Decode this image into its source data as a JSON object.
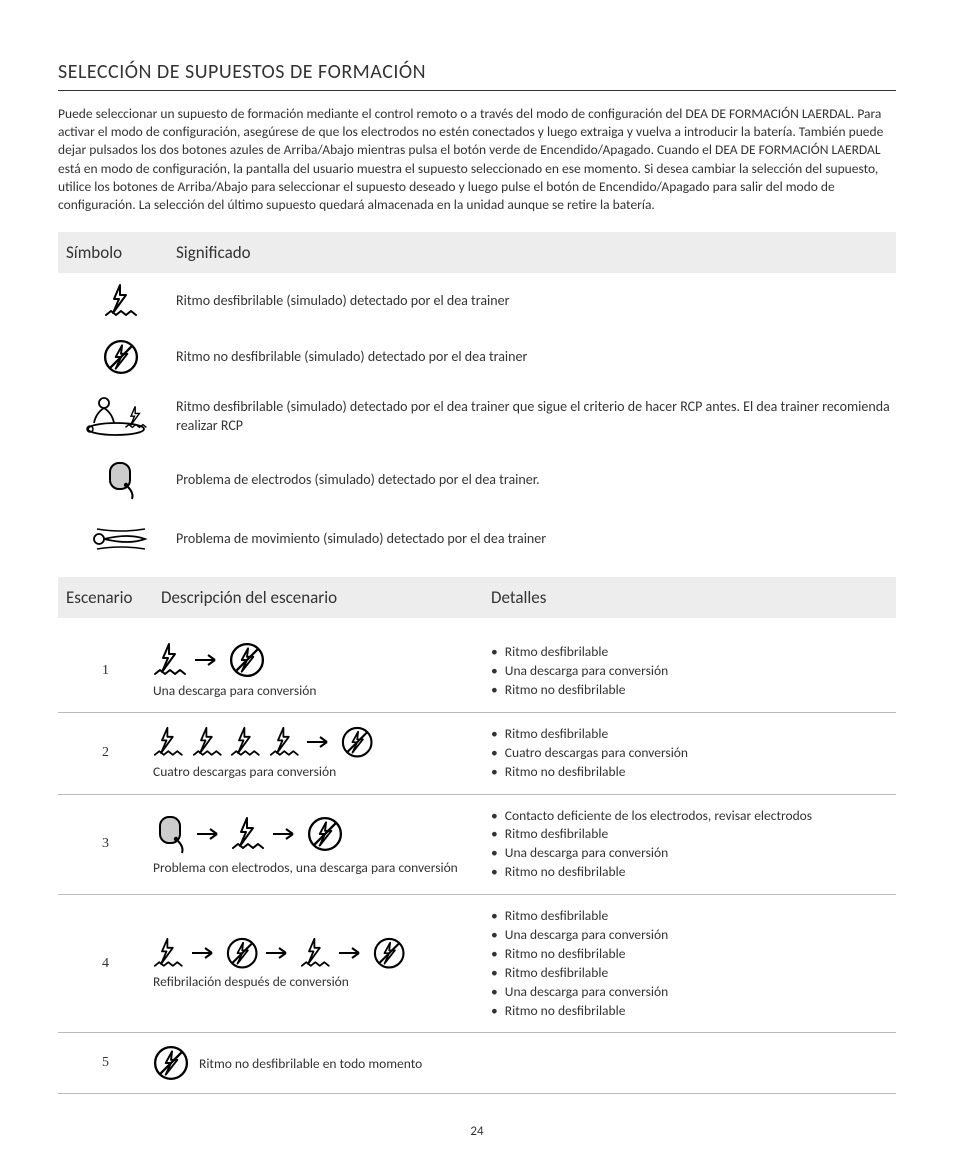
{
  "title": "SELECCIÓN DE SUPUESTOS DE FORMACIÓN",
  "intro": "Puede seleccionar un supuesto de formación mediante el control remoto o a través del modo de configuración del DEA DE FORMACIÓN LAERDAL. Para activar el modo de configuración, asegúrese de que los electrodos no estén conectados y luego extraiga y vuelva a introducir la batería. También puede dejar pulsados los dos botones azules de Arriba/Abajo mientras pulsa el botón verde de Encendido/Apagado. Cuando el DEA DE FORMACIÓN LAERDAL  está en modo de configuración, la pantalla del usuario muestra el supuesto seleccionado en ese momento. Si desea cambiar la selección del supuesto, utilice los botones de Arriba/Abajo para seleccionar el supuesto deseado y luego pulse el botón de Encendido/Apagado para salir del modo de configuración. La selección del último supuesto quedará almacenada en la unidad aunque se retire la batería.",
  "sym_header": {
    "symbol": "Símbolo",
    "meaning": "Significado"
  },
  "symbols": [
    {
      "icon": "shock",
      "text": "Ritmo desfibrilable (simulado) detectado por el dea trainer"
    },
    {
      "icon": "noshock",
      "text": "Ritmo no desfibrilable (simulado) detectado por el dea trainer"
    },
    {
      "icon": "cpr",
      "text": "Ritmo desfibrilable (simulado) detectado por el dea trainer que sigue el criterio de hacer RCP antes. El dea trainer recomienda realizar RCP"
    },
    {
      "icon": "pad",
      "text": "Problema de electrodos (simulado) detectado por el dea trainer."
    },
    {
      "icon": "motion",
      "text": "Problema de movimiento (simulado) detectado por el dea trainer"
    }
  ],
  "scen_header": {
    "escenario": "Escenario",
    "desc": "Descripción del escenario",
    "det": "Detalles"
  },
  "scenarios": [
    {
      "num": "1",
      "icons": [
        "shock",
        "arrow",
        "noshock"
      ],
      "caption": "Una descarga para conversión",
      "details": [
        "Ritmo desfibrilable",
        "Una descarga para conversión",
        "Ritmo no desfibrilable"
      ]
    },
    {
      "num": "2",
      "icons": [
        "shock",
        "shock",
        "shock",
        "shock",
        "arrow",
        "noshock"
      ],
      "caption": "Cuatro descargas para conversión",
      "details": [
        "Ritmo desfibrilable",
        "Cuatro descargas para conversión",
        "Ritmo no desfibrilable"
      ]
    },
    {
      "num": "3",
      "icons": [
        "pad",
        "arrow",
        "shock",
        "arrow",
        "noshock"
      ],
      "caption": "Problema con electrodos, una descarga para conversión",
      "details": [
        "Contacto deficiente de los electrodos, revisar electrodos",
        "Ritmo desfibrilable",
        "Una descarga para conversión",
        "Ritmo no desfibrilable"
      ]
    },
    {
      "num": "4",
      "icons": [
        "shock",
        "arrow",
        "noshock",
        "arrow",
        "shock",
        "arrow",
        "noshock"
      ],
      "caption": "Refibrilación después de conversión",
      "details": [
        "Ritmo desfibrilable",
        "Una descarga para conversión",
        "Ritmo no desfibrilable",
        "Ritmo desfibrilable",
        "Una descarga para conversión",
        "Ritmo no desfibrilable"
      ]
    },
    {
      "num": "5",
      "icons": [
        "noshock"
      ],
      "caption": "Ritmo no desfibrilable en todo momento",
      "details": []
    }
  ],
  "page_number": "24",
  "colors": {
    "header_bg": "#ededed",
    "text": "#333333",
    "border": "#bbbbbb"
  }
}
